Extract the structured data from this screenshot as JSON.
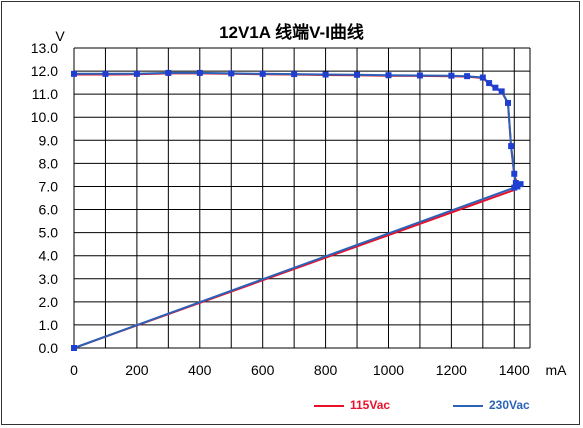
{
  "chart_data": {
    "type": "line",
    "title": "12V1A 线端V-I曲线",
    "xlabel": "mA",
    "ylabel": "V",
    "xlim": [
      0,
      1450
    ],
    "ylim": [
      0,
      13
    ],
    "x_ticks": [
      "0",
      "200",
      "400",
      "600",
      "800",
      "1000",
      "1200",
      "1400"
    ],
    "y_ticks": [
      "0.0",
      "1.0",
      "2.0",
      "3.0",
      "4.0",
      "5.0",
      "6.0",
      "7.0",
      "8.0",
      "9.0",
      "10.0",
      "11.0",
      "12.0",
      "13.0"
    ],
    "grid": true,
    "legend_position": "bottom",
    "series": [
      {
        "name": "115Vac",
        "color": "#e8102a",
        "points": [
          [
            0,
            11.85
          ],
          [
            100,
            11.85
          ],
          [
            200,
            11.86
          ],
          [
            300,
            11.9
          ],
          [
            400,
            11.9
          ],
          [
            500,
            11.88
          ],
          [
            600,
            11.86
          ],
          [
            700,
            11.85
          ],
          [
            800,
            11.83
          ],
          [
            900,
            11.82
          ],
          [
            1000,
            11.8
          ],
          [
            1100,
            11.79
          ],
          [
            1200,
            11.78
          ],
          [
            1250,
            11.76
          ],
          [
            1300,
            11.7
          ],
          [
            1320,
            11.45
          ],
          [
            1340,
            11.25
          ],
          [
            1360,
            11.1
          ],
          [
            1380,
            10.6
          ],
          [
            1390,
            8.7
          ],
          [
            1400,
            7.5
          ],
          [
            1410,
            7.1
          ],
          [
            1420,
            7.05
          ],
          [
            1400,
            6.95
          ],
          [
            1400,
            6.85
          ],
          [
            0,
            0
          ]
        ]
      },
      {
        "name": "230Vac",
        "color": "#2b62b8",
        "points": [
          [
            0,
            11.88
          ],
          [
            100,
            11.88
          ],
          [
            200,
            11.88
          ],
          [
            300,
            11.92
          ],
          [
            400,
            11.92
          ],
          [
            500,
            11.9
          ],
          [
            600,
            11.88
          ],
          [
            700,
            11.87
          ],
          [
            800,
            11.85
          ],
          [
            900,
            11.84
          ],
          [
            1000,
            11.82
          ],
          [
            1100,
            11.81
          ],
          [
            1200,
            11.8
          ],
          [
            1250,
            11.78
          ],
          [
            1300,
            11.72
          ],
          [
            1320,
            11.48
          ],
          [
            1340,
            11.28
          ],
          [
            1360,
            11.12
          ],
          [
            1380,
            10.62
          ],
          [
            1390,
            8.75
          ],
          [
            1400,
            7.55
          ],
          [
            1405,
            7.15
          ],
          [
            1420,
            7.1
          ],
          [
            1410,
            7.0
          ],
          [
            1400,
            6.95
          ],
          [
            0,
            0
          ]
        ]
      }
    ]
  }
}
